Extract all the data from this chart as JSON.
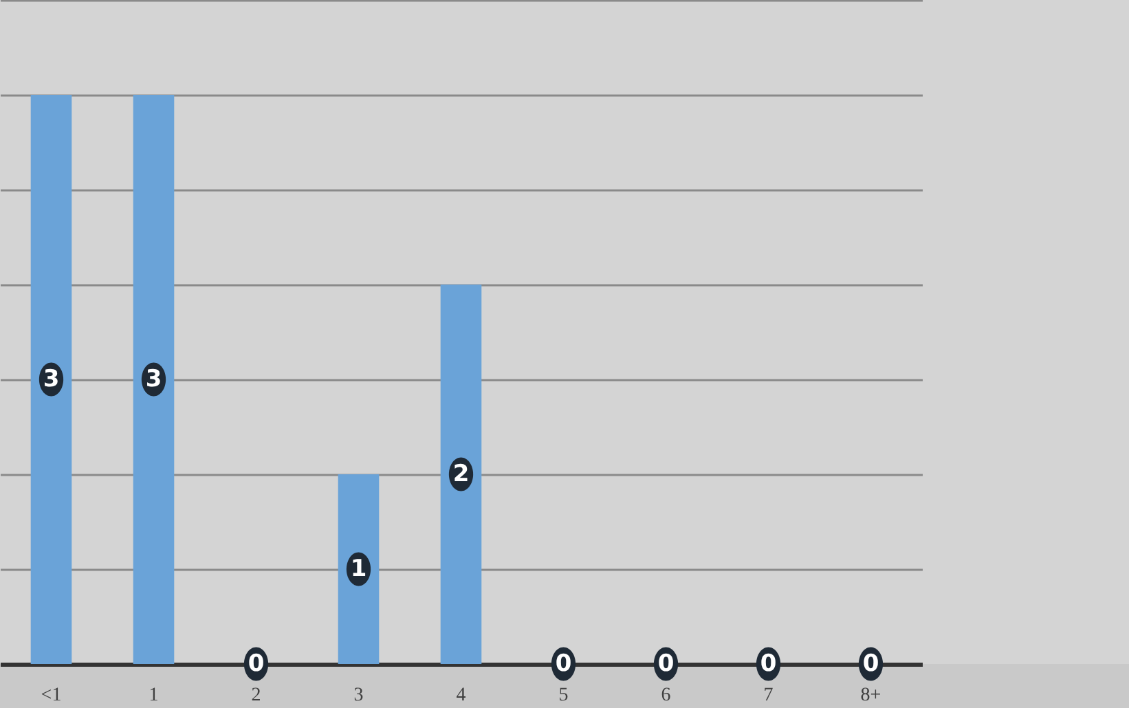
{
  "chart_data": {
    "type": "bar",
    "categories": [
      "<1",
      "1",
      "2",
      "3",
      "4",
      "5",
      "6",
      "7",
      "8+"
    ],
    "values": [
      3,
      3,
      0,
      1,
      2,
      0,
      0,
      0,
      0
    ],
    "color": "#6aa3d8",
    "ylim": [
      0,
      3.5
    ],
    "yticks": [
      {
        "value": 0,
        "label": null
      },
      {
        "value": 0.5,
        "label": null
      },
      {
        "value": 1,
        "label": null
      },
      {
        "value": 1.5,
        "label": null
      },
      {
        "value": 2,
        "label": null
      },
      {
        "value": 2.5,
        "label": null
      },
      {
        "value": 3,
        "label": null
      },
      {
        "value": 3.5,
        "label": null
      }
    ],
    "grid": "y",
    "data_labels": true
  }
}
